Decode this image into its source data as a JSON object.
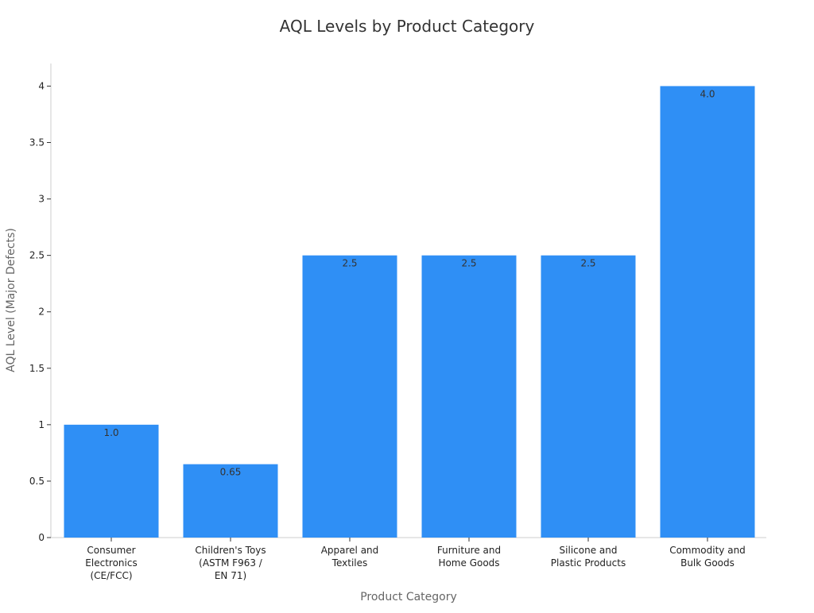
{
  "chart_data": {
    "type": "bar",
    "title": "AQL Levels by Product Category",
    "xlabel": "Product Category",
    "ylabel": "AQL Level (Major Defects)",
    "categories": [
      [
        "Consumer",
        "Electronics",
        "(CE/FCC)"
      ],
      [
        "Children's Toys",
        "(ASTM F963 /",
        "EN 71)"
      ],
      [
        "Apparel and",
        "Textiles"
      ],
      [
        "Furniture and",
        "Home Goods"
      ],
      [
        "Silicone and",
        "Plastic Products"
      ],
      [
        "Commodity and",
        "Bulk Goods"
      ]
    ],
    "values": [
      1.0,
      0.65,
      2.5,
      2.5,
      2.5,
      4.0
    ],
    "data_labels": [
      "1.0",
      "0.65",
      "2.5",
      "2.5",
      "2.5",
      "4.0"
    ],
    "yticks": [
      0,
      0.5,
      1,
      1.5,
      2,
      2.5,
      3,
      3.5,
      4
    ],
    "ytick_labels": [
      "0",
      "0.5",
      "1",
      "1.5",
      "2",
      "2.5",
      "3",
      "3.5",
      "4"
    ],
    "ylim": [
      0,
      4.2
    ],
    "grid": false,
    "legend": "none",
    "bar_color": "#2f8ff5"
  }
}
